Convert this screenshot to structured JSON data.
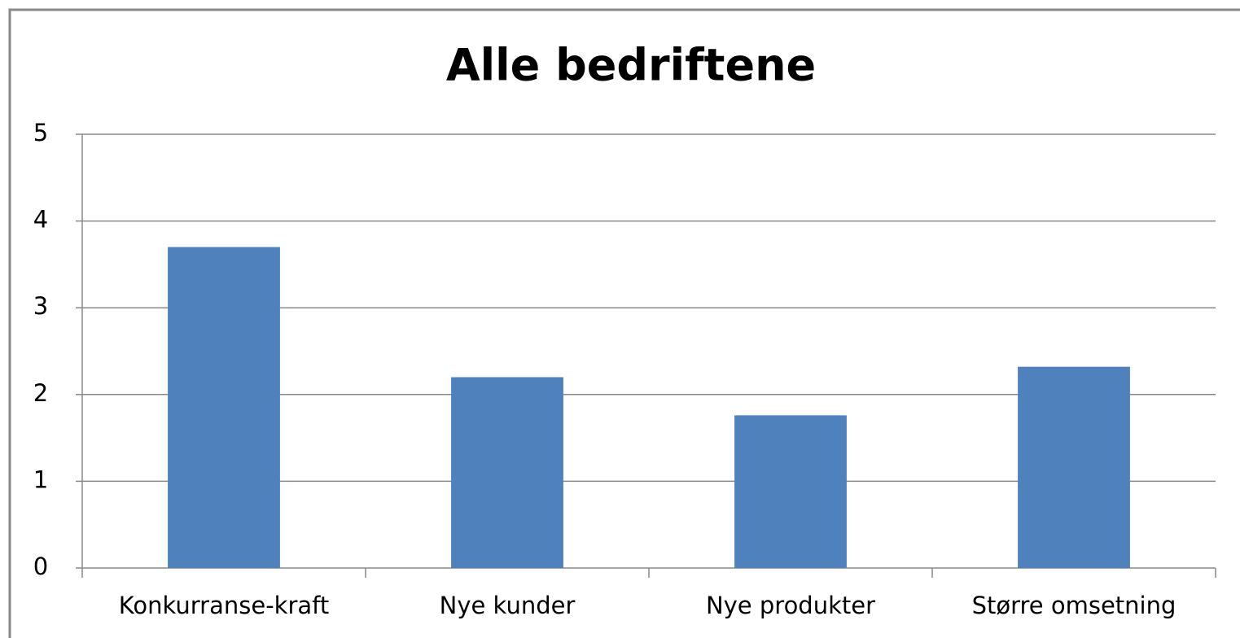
{
  "chart_data": {
    "type": "bar",
    "title": "Alle bedriftene",
    "categories": [
      "Konkurranse-kraft",
      "Nye kunder",
      "Nye produkter",
      "Større omsetning"
    ],
    "values": [
      3.7,
      2.2,
      1.76,
      2.32
    ],
    "color": "#4f81bd",
    "ylim": [
      0,
      5
    ],
    "yticks": [
      0,
      1,
      2,
      3,
      4,
      5
    ],
    "grid": true
  }
}
